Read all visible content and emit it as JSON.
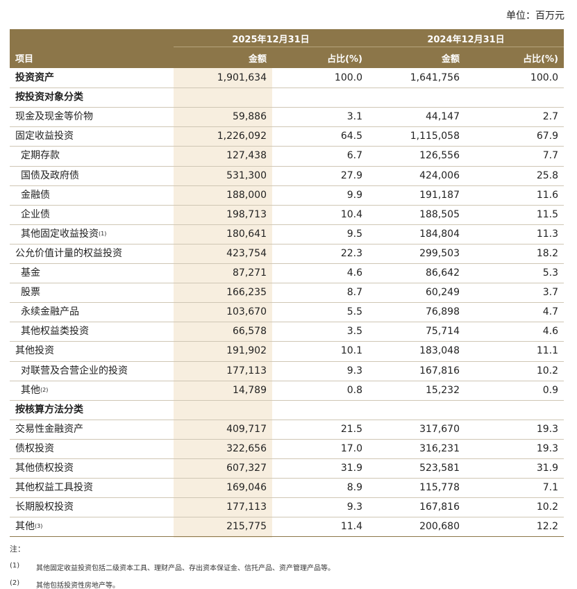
{
  "unit": "单位：百万元",
  "table": {
    "header": {
      "date_2025": "2025年12月31日",
      "date_2024": "2024年12月31日",
      "item": "项目",
      "columns": [
        "金额",
        "占比(%)",
        "金额",
        "占比(%)"
      ]
    },
    "rows": [
      {
        "label": "投资资产",
        "cells": [
          "1,901,634",
          "100.0",
          "1,641,756",
          "100.0"
        ]
      },
      {
        "label": "按投资对象分类"
      },
      {
        "label": "现金及现金等价物",
        "cells": [
          "59,886",
          "3.1",
          "44,147",
          "2.7"
        ]
      },
      {
        "label": "固定收益投资",
        "cells": [
          "1,226,092",
          "64.5",
          "1,115,058",
          "67.9"
        ]
      },
      {
        "label": "定期存款",
        "cells": [
          "127,438",
          "6.7",
          "126,556",
          "7.7"
        ]
      },
      {
        "label": "国债及政府债",
        "cells": [
          "531,300",
          "27.9",
          "424,006",
          "25.8"
        ]
      },
      {
        "label": "金融债",
        "cells": [
          "188,000",
          "9.9",
          "191,187",
          "11.6"
        ]
      },
      {
        "label": "企业债",
        "cells": [
          "198,713",
          "10.4",
          "188,505",
          "11.5"
        ]
      },
      {
        "label": "其他固定收益投资",
        "sup": "(1)",
        "cells": [
          "180,641",
          "9.5",
          "184,804",
          "11.3"
        ]
      },
      {
        "label": "公允价值计量的权益投资",
        "cells": [
          "423,754",
          "22.3",
          "299,503",
          "18.2"
        ]
      },
      {
        "label": "基金",
        "cells": [
          "87,271",
          "4.6",
          "86,642",
          "5.3"
        ]
      },
      {
        "label": "股票",
        "cells": [
          "166,235",
          "8.7",
          "60,249",
          "3.7"
        ]
      },
      {
        "label": "永续金融产品",
        "cells": [
          "103,670",
          "5.5",
          "76,898",
          "4.7"
        ]
      },
      {
        "label": "其他权益类投资",
        "cells": [
          "66,578",
          "3.5",
          "75,714",
          "4.6"
        ]
      },
      {
        "label": "其他投资",
        "cells": [
          "191,902",
          "10.1",
          "183,048",
          "11.1"
        ]
      },
      {
        "label": "对联营及合营企业的投资",
        "cells": [
          "177,113",
          "9.3",
          "167,816",
          "10.2"
        ]
      },
      {
        "label": "其他",
        "sup": "(2)",
        "cells": [
          "14,789",
          "0.8",
          "15,232",
          "0.9"
        ]
      },
      {
        "label": "按核算方法分类"
      },
      {
        "label": "交易性金融资产",
        "cells": [
          "409,717",
          "21.5",
          "317,670",
          "19.3"
        ]
      },
      {
        "label": "债权投资",
        "cells": [
          "322,656",
          "17.0",
          "316,231",
          "19.3"
        ]
      },
      {
        "label": "其他债权投资",
        "cells": [
          "607,327",
          "31.9",
          "523,581",
          "31.9"
        ]
      },
      {
        "label": "其他权益工具投资",
        "cells": [
          "169,046",
          "8.9",
          "115,778",
          "7.1"
        ]
      },
      {
        "label": "长期股权投资",
        "cells": [
          "177,113",
          "9.3",
          "167,816",
          "10.2"
        ]
      },
      {
        "label": "其他",
        "sup": "(3)",
        "cells": [
          "215,775",
          "11.4",
          "200,680",
          "12.2"
        ]
      }
    ]
  },
  "notes": {
    "title": "注：",
    "items": [
      {
        "marker": "(1)",
        "text": "其他固定收益投资包括二级资本工具、理财产品、存出资本保证金、信托产品、资产管理产品等。"
      },
      {
        "marker": "(2)",
        "text": "其他包括投资性房地产等。"
      }
    ]
  }
}
